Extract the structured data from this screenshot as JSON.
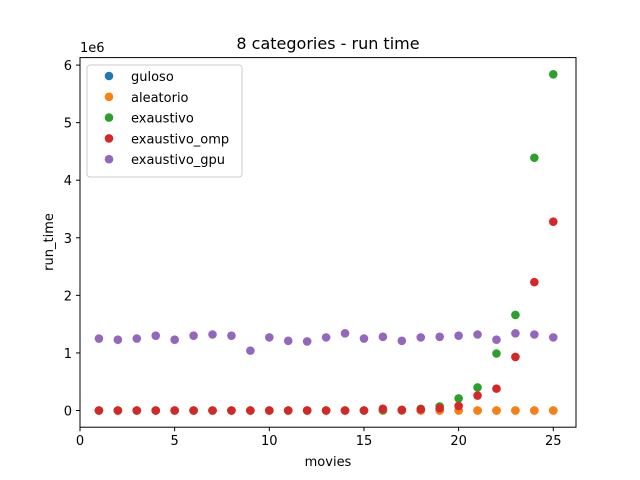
{
  "chart_data": {
    "type": "scatter",
    "title": "8 categories - run time",
    "xlabel": "movies",
    "ylabel": "run_time",
    "y_scale_label": "1e6",
    "xlim": [
      0,
      26.2
    ],
    "ylim": [
      -0.29,
      6.13
    ],
    "x_ticks": [
      0,
      5,
      10,
      15,
      20,
      25
    ],
    "y_ticks": [
      0,
      1,
      2,
      3,
      4,
      5,
      6
    ],
    "legend_position": "upper-left",
    "x": [
      1,
      2,
      3,
      4,
      5,
      6,
      7,
      8,
      9,
      10,
      11,
      12,
      13,
      14,
      15,
      16,
      17,
      18,
      19,
      20,
      21,
      22,
      23,
      24,
      25
    ],
    "series": [
      {
        "name": "guloso",
        "color": "#1f77b4",
        "values": [
          0,
          0,
          0,
          0,
          0,
          0,
          0,
          0,
          0,
          0,
          0,
          0,
          0,
          0,
          0,
          0,
          0,
          0,
          0,
          0,
          0,
          0,
          0,
          0,
          0
        ]
      },
      {
        "name": "aleatorio",
        "color": "#ff7f0e",
        "values": [
          0,
          0,
          0,
          0,
          0,
          0,
          0,
          0,
          0,
          0,
          0,
          0,
          0,
          0,
          0,
          0,
          0,
          0,
          0,
          0,
          0,
          0,
          0,
          0,
          0
        ]
      },
      {
        "name": "exaustivo",
        "color": "#2ca02c",
        "values": [
          0,
          0,
          0,
          0,
          0,
          0,
          0,
          0,
          0,
          0,
          0,
          0,
          0,
          0,
          0,
          0.01,
          0.01,
          0.03,
          0.07,
          0.21,
          0.4,
          0.99,
          1.66,
          4.39,
          5.84
        ]
      },
      {
        "name": "exaustivo_omp",
        "color": "#d62728",
        "values": [
          0,
          0,
          0,
          0,
          0,
          0,
          0,
          0,
          0,
          0,
          0,
          0,
          0,
          0,
          0,
          0.03,
          0.01,
          0.02,
          0.04,
          0.08,
          0.26,
          0.38,
          0.93,
          2.23,
          3.28
        ]
      },
      {
        "name": "exaustivo_gpu",
        "color": "#9467bd",
        "values": [
          1.25,
          1.23,
          1.25,
          1.3,
          1.23,
          1.3,
          1.32,
          1.3,
          1.04,
          1.27,
          1.21,
          1.2,
          1.27,
          1.34,
          1.25,
          1.28,
          1.21,
          1.27,
          1.28,
          1.3,
          1.32,
          1.23,
          1.34,
          1.32,
          1.27
        ]
      }
    ]
  }
}
